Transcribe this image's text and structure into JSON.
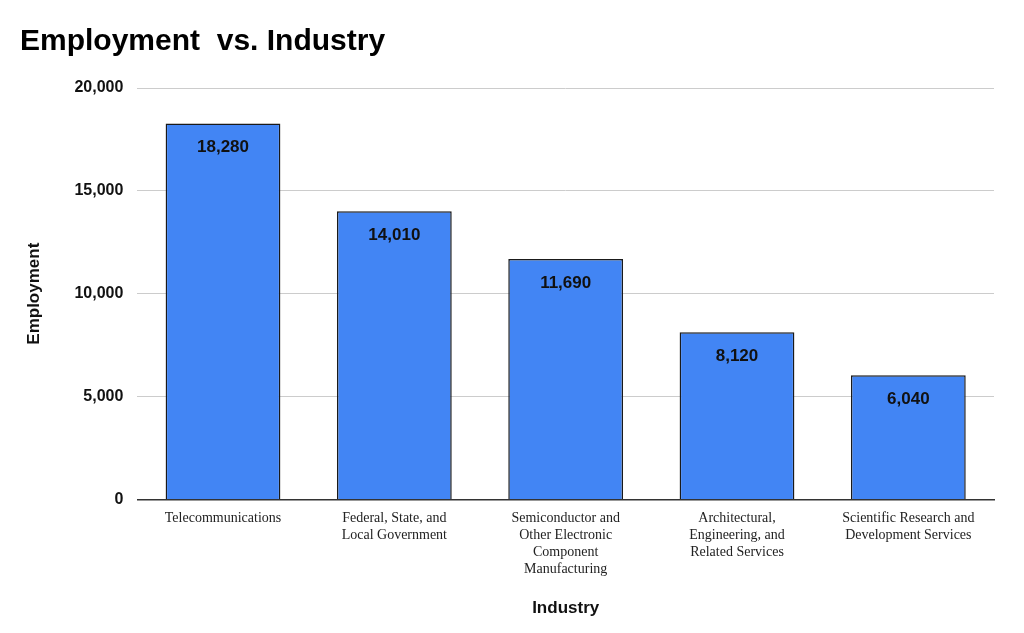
{
  "chart_data": {
    "type": "bar",
    "title": "Employment  vs. Industry",
    "x_label": "Industry",
    "y_label": "Employment",
    "categories": [
      "Telecommunications",
      "Federal, State, and Local Government",
      "Semiconductor and Other Electronic Component Manufacturing",
      "Architectural, Engineering, and Related Services",
      "Scientific Research and Development Services"
    ],
    "values": [
      18280,
      14010,
      11690,
      8120,
      6040
    ],
    "value_labels": [
      "18,280",
      "14,010",
      "11,690",
      "8,120",
      "6,040"
    ],
    "color": "#4285f4",
    "ylim": [
      0,
      20000
    ],
    "yticks": [
      0,
      {
        "value": 5000,
        "label": "5,000"
      },
      {
        "value": 10000,
        "label": "10,000"
      },
      {
        "value": 15000,
        "label": "15,000"
      },
      {
        "value": 20000,
        "label": "20,000"
      }
    ],
    "grid": true,
    "data_labels": true
  }
}
